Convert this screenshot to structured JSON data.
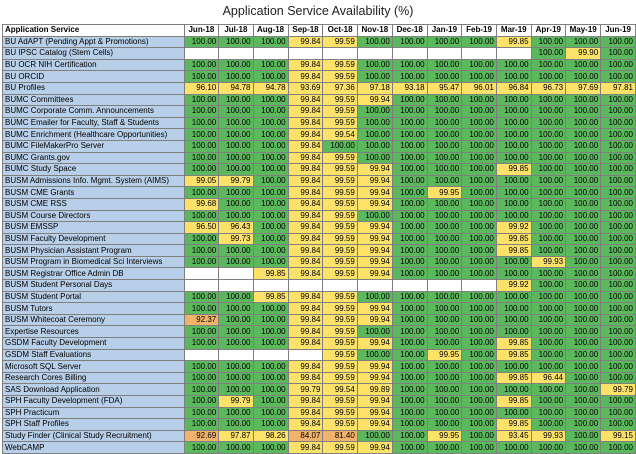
{
  "title": "Application Service Availability (%)",
  "table": {
    "service_header": "Application Service",
    "months": [
      "Jun-18",
      "Jul-18",
      "Aug-18",
      "Sep-18",
      "Oct-18",
      "Nov-18",
      "Dec-18",
      "Jan-19",
      "Feb-19",
      "Mar-19",
      "Apr-19",
      "May-19",
      "Jun-19"
    ],
    "rows": [
      {
        "name": "BU AdAPT (Pending Appt & Promotions)",
        "values": [
          "100.00",
          "100.00",
          "100.00",
          "99.84",
          "99.59",
          "100.00",
          "100.00",
          "100.00",
          "100.00",
          "99.85",
          "100.00",
          "100.00",
          "100.00"
        ]
      },
      {
        "name": "BU IPSC Catalog (Stem Cells)",
        "values": [
          "",
          "",
          "",
          "",
          "",
          "",
          "",
          "",
          "",
          "",
          "100.00",
          "99.90",
          "100.00"
        ]
      },
      {
        "name": "BU OCR NIH Certification",
        "values": [
          "100.00",
          "100.00",
          "100.00",
          "99.84",
          "99.59",
          "100.00",
          "100.00",
          "100.00",
          "100.00",
          "100.00",
          "100.00",
          "100.00",
          "100.00"
        ]
      },
      {
        "name": "BU ORCID",
        "values": [
          "100.00",
          "100.00",
          "100.00",
          "99.84",
          "99.59",
          "100.00",
          "100.00",
          "100.00",
          "100.00",
          "100.00",
          "100.00",
          "100.00",
          "100.00"
        ]
      },
      {
        "name": "BU Profiles",
        "values": [
          "96.10",
          "94.78",
          "94.78",
          "93.69",
          "97.36",
          "97.18",
          "93.18",
          "95.47",
          "96.01",
          "96.84",
          "96.73",
          "97.69",
          "97.81"
        ]
      },
      {
        "name": "BUMC Committees",
        "values": [
          "100.00",
          "100.00",
          "100.00",
          "99.84",
          "99.59",
          "99.94",
          "100.00",
          "100.00",
          "100.00",
          "100.00",
          "100.00",
          "100.00",
          "100.00"
        ]
      },
      {
        "name": "BUMC Corporate Comm. Announcements",
        "values": [
          "100.00",
          "100.00",
          "100.00",
          "99.84",
          "99.59",
          "100.00",
          "100.00",
          "100.00",
          "100.00",
          "100.00",
          "100.00",
          "100.00",
          "100.00"
        ]
      },
      {
        "name": "BUMC Emailer for Faculty, Staff & Students",
        "values": [
          "100.00",
          "100.00",
          "100.00",
          "99.84",
          "99.59",
          "100.00",
          "100.00",
          "100.00",
          "100.00",
          "100.00",
          "100.00",
          "100.00",
          "100.00"
        ]
      },
      {
        "name": "BUMC Enrichment (Healthcare Opportunities)",
        "values": [
          "100.00",
          "100.00",
          "100.00",
          "99.84",
          "99.54",
          "100.00",
          "100.00",
          "100.00",
          "100.00",
          "100.00",
          "100.00",
          "100.00",
          "100.00"
        ]
      },
      {
        "name": "BUMC FileMakerPro Server",
        "values": [
          "100.00",
          "100.00",
          "100.00",
          "99.84",
          "100.00",
          "100.00",
          "100.00",
          "100.00",
          "100.00",
          "100.00",
          "100.00",
          "100.00",
          "100.00"
        ]
      },
      {
        "name": "BUMC Grants.gov",
        "values": [
          "100.00",
          "100.00",
          "100.00",
          "99.84",
          "99.59",
          "100.00",
          "100.00",
          "100.00",
          "100.00",
          "100.00",
          "100.00",
          "100.00",
          "100.00"
        ]
      },
      {
        "name": "BUMC Study Space",
        "values": [
          "100.00",
          "100.00",
          "100.00",
          "99.84",
          "99.59",
          "99.94",
          "100.00",
          "100.00",
          "100.00",
          "99.85",
          "100.00",
          "100.00",
          "100.00"
        ]
      },
      {
        "name": "BUSM Admissions Info. Mgmt. System (AIMS)",
        "values": [
          "99.05",
          "99.79",
          "100.00",
          "99.84",
          "99.59",
          "99.94",
          "100.00",
          "100.00",
          "100.00",
          "100.00",
          "100.00",
          "100.00",
          "100.00"
        ]
      },
      {
        "name": "BUSM CME Grants",
        "values": [
          "100.00",
          "100.00",
          "100.00",
          "99.84",
          "99.59",
          "99.94",
          "100.00",
          "99.95",
          "100.00",
          "100.00",
          "100.00",
          "100.00",
          "100.00"
        ]
      },
      {
        "name": "BUSM CME RSS",
        "values": [
          "99.68",
          "100.00",
          "100.00",
          "99.84",
          "99.59",
          "99.94",
          "100.00",
          "100.00",
          "100.00",
          "100.00",
          "100.00",
          "100.00",
          "100.00"
        ]
      },
      {
        "name": "BUSM Course Directors",
        "values": [
          "100.00",
          "100.00",
          "100.00",
          "99.84",
          "99.59",
          "100.00",
          "100.00",
          "100.00",
          "100.00",
          "100.00",
          "100.00",
          "100.00",
          "100.00"
        ]
      },
      {
        "name": "BUSM EMSSP",
        "values": [
          "96.50",
          "96.43",
          "100.00",
          "99.84",
          "99.59",
          "99.94",
          "100.00",
          "100.00",
          "100.00",
          "99.92",
          "100.00",
          "100.00",
          "100.00"
        ]
      },
      {
        "name": "BUSM Faculty Development",
        "values": [
          "100.00",
          "99.73",
          "100.00",
          "99.84",
          "99.59",
          "99.94",
          "100.00",
          "100.00",
          "100.00",
          "99.85",
          "100.00",
          "100.00",
          "100.00"
        ]
      },
      {
        "name": "BUSM Physician Assistant Program",
        "values": [
          "100.00",
          "100.00",
          "100.00",
          "99.84",
          "99.59",
          "99.94",
          "100.00",
          "100.00",
          "100.00",
          "99.85",
          "100.00",
          "100.00",
          "100.00"
        ]
      },
      {
        "name": "BUSM Program in Biomedical Sci Interviews",
        "values": [
          "100.00",
          "100.00",
          "100.00",
          "99.84",
          "99.59",
          "99.94",
          "100.00",
          "100.00",
          "100.00",
          "100.00",
          "99.93",
          "100.00",
          "100.00"
        ]
      },
      {
        "name": "BUSM Registrar Office Admin DB",
        "values": [
          "",
          "",
          "99.85",
          "99.84",
          "99.59",
          "99.94",
          "100.00",
          "100.00",
          "100.00",
          "100.00",
          "100.00",
          "100.00",
          "100.00"
        ]
      },
      {
        "name": "BUSM Student Personal Days",
        "values": [
          "",
          "",
          "",
          "",
          "",
          "",
          "",
          "",
          "",
          "99.92",
          "100.00",
          "100.00",
          "100.00"
        ]
      },
      {
        "name": "BUSM Student Portal",
        "values": [
          "100.00",
          "100.00",
          "99.85",
          "99.84",
          "99.59",
          "100.00",
          "100.00",
          "100.00",
          "100.00",
          "100.00",
          "100.00",
          "100.00",
          "100.00"
        ]
      },
      {
        "name": "BUSM Tutors",
        "values": [
          "100.00",
          "100.00",
          "100.00",
          "99.84",
          "99.59",
          "99.94",
          "100.00",
          "100.00",
          "100.00",
          "100.00",
          "100.00",
          "100.00",
          "100.00"
        ]
      },
      {
        "name": "BUSM Whitecoat Ceremony",
        "values": [
          "92.37",
          "100.00",
          "100.00",
          "99.84",
          "99.59",
          "99.94",
          "100.00",
          "100.00",
          "100.00",
          "100.00",
          "100.00",
          "100.00",
          "100.00"
        ]
      },
      {
        "name": "Expertise Resources",
        "values": [
          "100.00",
          "100.00",
          "100.00",
          "99.84",
          "99.59",
          "100.00",
          "100.00",
          "100.00",
          "100.00",
          "100.00",
          "100.00",
          "100.00",
          "100.00"
        ]
      },
      {
        "name": "GSDM Faculty Development",
        "values": [
          "100.00",
          "100.00",
          "100.00",
          "99.84",
          "99.59",
          "99.94",
          "100.00",
          "100.00",
          "100.00",
          "99.85",
          "100.00",
          "100.00",
          "100.00"
        ]
      },
      {
        "name": "GSDM Staff Evaluations",
        "values": [
          "",
          "",
          "",
          "",
          "99.59",
          "100.00",
          "100.00",
          "99.95",
          "100.00",
          "99.85",
          "100.00",
          "100.00",
          "100.00"
        ]
      },
      {
        "name": "Microsoft SQL Server",
        "values": [
          "100.00",
          "100.00",
          "100.00",
          "99.84",
          "99.59",
          "99.94",
          "100.00",
          "100.00",
          "100.00",
          "100.00",
          "100.00",
          "100.00",
          "100.00"
        ]
      },
      {
        "name": "Research Cores Billing",
        "values": [
          "100.00",
          "100.00",
          "100.00",
          "99.84",
          "99.59",
          "99.94",
          "100.00",
          "100.00",
          "100.00",
          "99.85",
          "96.44",
          "100.00",
          "100.00"
        ]
      },
      {
        "name": "SAS Download Application",
        "values": [
          "100.00",
          "100.00",
          "100.00",
          "99.79",
          "99.54",
          "99.89",
          "100.00",
          "100.00",
          "100.00",
          "100.00",
          "100.00",
          "100.00",
          "99.79"
        ]
      },
      {
        "name": "SPH Faculty Development (FDA)",
        "values": [
          "100.00",
          "99.79",
          "100.00",
          "99.84",
          "99.59",
          "99.94",
          "100.00",
          "100.00",
          "100.00",
          "99.85",
          "100.00",
          "100.00",
          "100.00"
        ]
      },
      {
        "name": "SPH Practicum",
        "values": [
          "100.00",
          "100.00",
          "100.00",
          "99.84",
          "99.59",
          "99.94",
          "100.00",
          "100.00",
          "100.00",
          "100.00",
          "100.00",
          "100.00",
          "100.00"
        ]
      },
      {
        "name": "SPH Staff Profiles",
        "values": [
          "100.00",
          "100.00",
          "100.00",
          "99.84",
          "99.59",
          "99.94",
          "100.00",
          "100.00",
          "100.00",
          "99.85",
          "100.00",
          "100.00",
          "100.00"
        ]
      },
      {
        "name": "Study Finder (Clinical Study Recruitment)",
        "values": [
          "92.69",
          "97.87",
          "98.26",
          "84.07",
          "81.40",
          "100.00",
          "100.00",
          "99.95",
          "100.00",
          "93.45",
          "99.93",
          "100.00",
          "99.15"
        ]
      },
      {
        "name": "WebCAMP",
        "values": [
          "100.00",
          "100.00",
          "100.00",
          "99.84",
          "99.59",
          "99.94",
          "100.00",
          "100.00",
          "100.00",
          "100.00",
          "100.00",
          "100.00",
          "100.00"
        ]
      }
    ]
  }
}
